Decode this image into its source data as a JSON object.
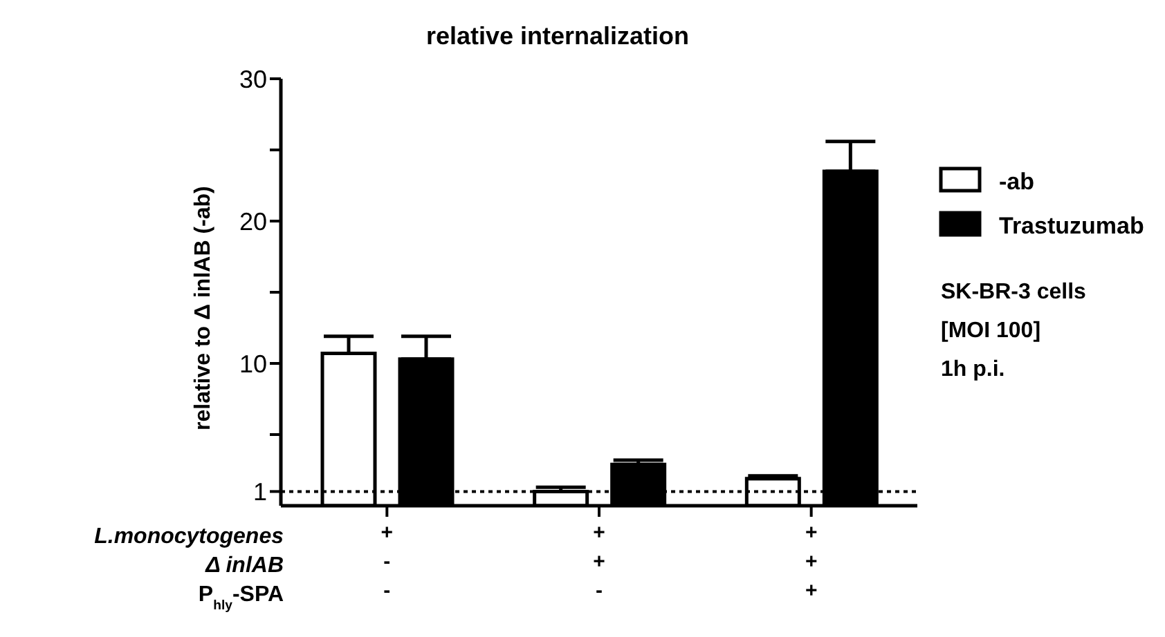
{
  "chart_data": {
    "type": "bar",
    "title": "relative internalization",
    "ylabel": "relative to Δ inlAB (-ab)",
    "categories": [
      "+\n-\n-",
      "+\n+\n-",
      "+\n+\n+"
    ],
    "series": [
      {
        "name": "-ab",
        "color": "#ffffff",
        "values": [
          10.7,
          1.0,
          1.9
        ],
        "errors": [
          [
            10.7,
            11.9
          ],
          [
            1.0,
            1.3
          ],
          [
            1.9,
            2.1
          ]
        ]
      },
      {
        "name": "Trastuzumab",
        "color": "#000000",
        "values": [
          10.3,
          2.9,
          23.5
        ],
        "errors": [
          [
            10.3,
            11.9
          ],
          [
            2.9,
            3.2
          ],
          [
            23.5,
            25.6
          ]
        ]
      }
    ],
    "ylim": [
      0,
      30
    ],
    "yticks": [
      1,
      {
        "value": 5,
        "label": null
      },
      10,
      {
        "value": 15,
        "label": null
      },
      20,
      {
        "value": 25,
        "label": null
      },
      30
    ],
    "ref_lines": [
      {
        "axis": "y",
        "value": 1,
        "color": "#000000",
        "line_style": "dotted"
      }
    ],
    "legend": "top right",
    "grid": false,
    "annotations": [
      "L.monocytogenes",
      "Δ inlAB",
      "P$_{hly}$-SPA",
      "SK-BR-3 cells",
      "[MOI 100]",
      "1h p.i."
    ]
  }
}
